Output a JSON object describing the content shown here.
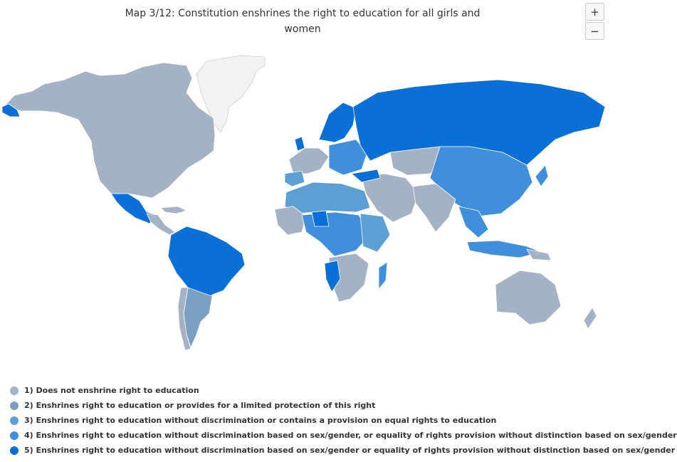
{
  "map": {
    "title": "Map 3/12: Constitution enshrines the right to education for all girls and women",
    "zoom_in_label": "+",
    "zoom_out_label": "−"
  },
  "legend": {
    "items": [
      {
        "label": "1) Does not enshrine right to education",
        "color": "#a3b2c5"
      },
      {
        "label": "2) Enshrines right to education or provides for a limited protection of this right",
        "color": "#7b9fc0"
      },
      {
        "label": "3) Enshrines right to education without discrimination or contains a provision on equal rights to education",
        "color": "#5b9fd4"
      },
      {
        "label": "4) Enshrines right to education without discrimination based on sex/gender, or equality of rights provision without distinction based on sex/gender",
        "color": "#3f8fdc"
      },
      {
        "label": "5) Enshrines right to education without discrimination based on sex/gender or equality of rights provision without distinction based on sex/gender",
        "color": "#0a6fd6"
      }
    ]
  },
  "colors": {
    "no_data": "#f2f2f2",
    "border": "#ffffff"
  }
}
